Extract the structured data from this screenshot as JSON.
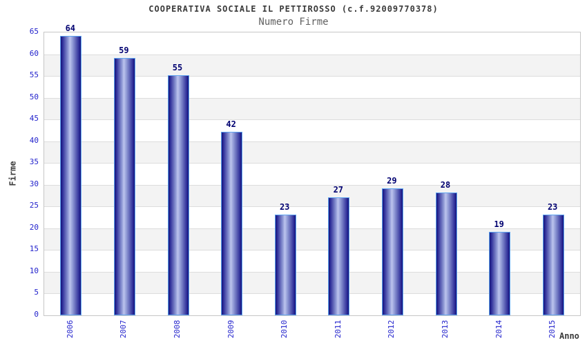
{
  "header": {
    "title": "COOPERATIVA SOCIALE IL PETTIROSSO (c.f.92009770378)",
    "subtitle": "Numero Firme"
  },
  "chart_data": {
    "type": "bar",
    "title": "COOPERATIVA SOCIALE IL PETTIROSSO (c.f.92009770378)",
    "subtitle": "Numero Firme",
    "categories": [
      "2006",
      "2007",
      "2008",
      "2009",
      "2010",
      "2011",
      "2012",
      "2013",
      "2014",
      "2015"
    ],
    "values": [
      64,
      59,
      55,
      42,
      23,
      27,
      29,
      28,
      19,
      23
    ],
    "xlabel": "Anno",
    "ylabel": "Firme",
    "ylim": [
      0,
      65
    ],
    "ytick_step": 5,
    "ytick_labels": [
      "0",
      "5",
      "10",
      "15",
      "20",
      "25",
      "30",
      "35",
      "40",
      "45",
      "50",
      "55",
      "60",
      "65"
    ],
    "legend": "none",
    "grid": "horizontal-bands-alternating",
    "value_labels": "above-bars",
    "x_tick_rotation": -90
  },
  "colors": {
    "bar_edge": "#14147a",
    "bar_dark": "#2b2b97",
    "bar_mid": "#8e98d4",
    "bar_highlight": "#bcc4ee",
    "bar_outline": "#5ea4f0",
    "tick_text": "#2222cc",
    "value_text": "#000070",
    "band_gray": "#f3f3f3",
    "gridline": "#dcdcdc",
    "axis": "#c6c6c6",
    "title_text": "#3a3a3a",
    "subtitle_text": "#606060"
  }
}
